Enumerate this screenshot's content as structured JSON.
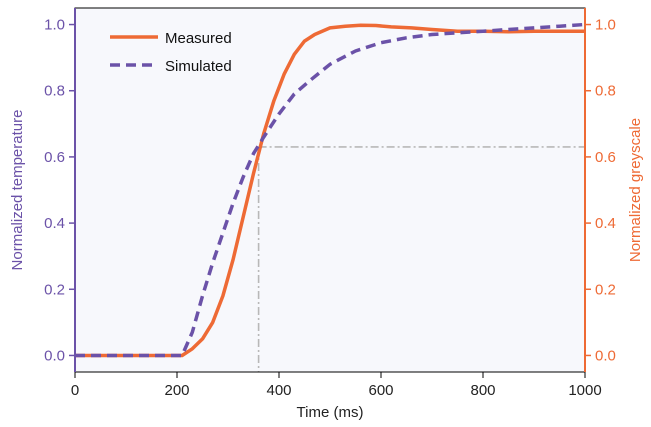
{
  "chart_data": {
    "type": "line",
    "xlabel": "Time (ms)",
    "ylabel_left": "Normalized temperature",
    "ylabel_right": "Normalized greyscale",
    "xlim": [
      0,
      1000
    ],
    "ylim": [
      -0.05,
      1.05
    ],
    "x_ticks": [
      "0",
      "200",
      "400",
      "600",
      "800",
      "1000"
    ],
    "y_ticks": [
      "0.0",
      "0.2",
      "0.4",
      "0.6",
      "0.8",
      "1.0"
    ],
    "legend_position": "top-left",
    "reference_point": {
      "x": 360,
      "y": 0.63
    },
    "series": [
      {
        "name": "Measured",
        "axis": "right",
        "color": "#ee6a35",
        "style": "solid",
        "x": [
          0,
          150,
          210,
          230,
          250,
          270,
          290,
          310,
          330,
          350,
          370,
          390,
          410,
          430,
          450,
          470,
          500,
          530,
          560,
          590,
          620,
          660,
          700,
          750,
          800,
          850,
          900,
          950,
          1000
        ],
        "y": [
          0.0,
          0.0,
          0.0,
          0.02,
          0.05,
          0.1,
          0.18,
          0.29,
          0.42,
          0.55,
          0.67,
          0.77,
          0.85,
          0.91,
          0.95,
          0.97,
          0.99,
          0.995,
          0.998,
          0.997,
          0.993,
          0.99,
          0.985,
          0.98,
          0.98,
          0.978,
          0.98,
          0.98,
          0.98
        ]
      },
      {
        "name": "Simulated",
        "axis": "left",
        "color": "#6b52a8",
        "style": "dashed",
        "x": [
          0,
          150,
          210,
          230,
          250,
          270,
          290,
          310,
          330,
          350,
          370,
          400,
          430,
          460,
          500,
          550,
          600,
          650,
          700,
          750,
          800,
          850,
          900,
          950,
          1000
        ],
        "y": [
          0.0,
          0.0,
          0.0,
          0.07,
          0.18,
          0.28,
          0.37,
          0.46,
          0.54,
          0.61,
          0.66,
          0.73,
          0.79,
          0.83,
          0.88,
          0.92,
          0.945,
          0.96,
          0.97,
          0.975,
          0.98,
          0.985,
          0.99,
          0.995,
          1.0
        ]
      }
    ],
    "colors": {
      "left_axis": "#6b52a8",
      "right_axis": "#ee6a35",
      "reference_line": "#b8b8b8",
      "plot_background": "#f7f8fc"
    }
  }
}
